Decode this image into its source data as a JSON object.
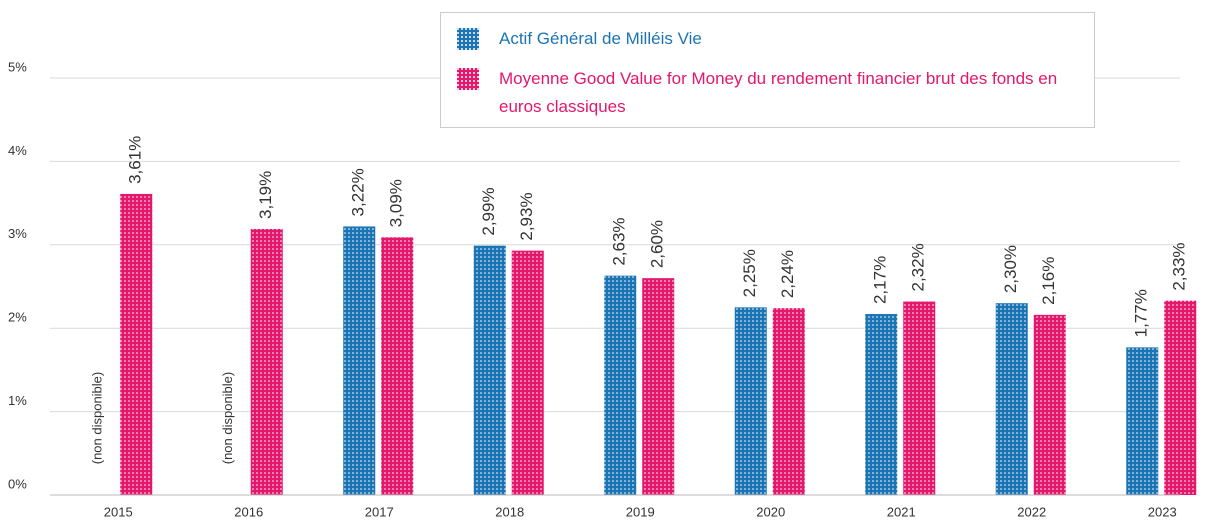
{
  "chart_data": {
    "type": "bar",
    "categories": [
      "2015",
      "2016",
      "2017",
      "2018",
      "2019",
      "2020",
      "2021",
      "2022",
      "2023"
    ],
    "series": [
      {
        "name": "Actif Général de Milléis Vie",
        "color": "#1b75b5",
        "values": [
          null,
          null,
          3.22,
          2.99,
          2.63,
          2.25,
          2.17,
          2.3,
          1.77
        ],
        "value_labels": [
          "(non disponible)",
          "(non disponible)",
          "3,22%",
          "2,99%",
          "2,63%",
          "2,25%",
          "2,17%",
          "2,30%",
          "1,77%"
        ]
      },
      {
        "name": "Moyenne Good Value for Money du rendement financier brut des fonds en euros classiques",
        "color": "#e4176d",
        "values": [
          3.61,
          3.19,
          3.09,
          2.93,
          2.6,
          2.24,
          2.32,
          2.16,
          2.33
        ],
        "value_labels": [
          "3,61%",
          "3,19%",
          "3,09%",
          "2,93%",
          "2,60%",
          "2,24%",
          "2,32%",
          "2,16%",
          "2,33%"
        ]
      }
    ],
    "ylim": [
      0,
      5
    ],
    "yticks": [
      {
        "value": 0,
        "label": "0%"
      },
      {
        "value": 1,
        "label": "1%"
      },
      {
        "value": 2,
        "label": "2%"
      },
      {
        "value": 3,
        "label": "3%"
      },
      {
        "value": 4,
        "label": "4%"
      },
      {
        "value": 5,
        "label": "5%"
      }
    ],
    "grid": true
  }
}
